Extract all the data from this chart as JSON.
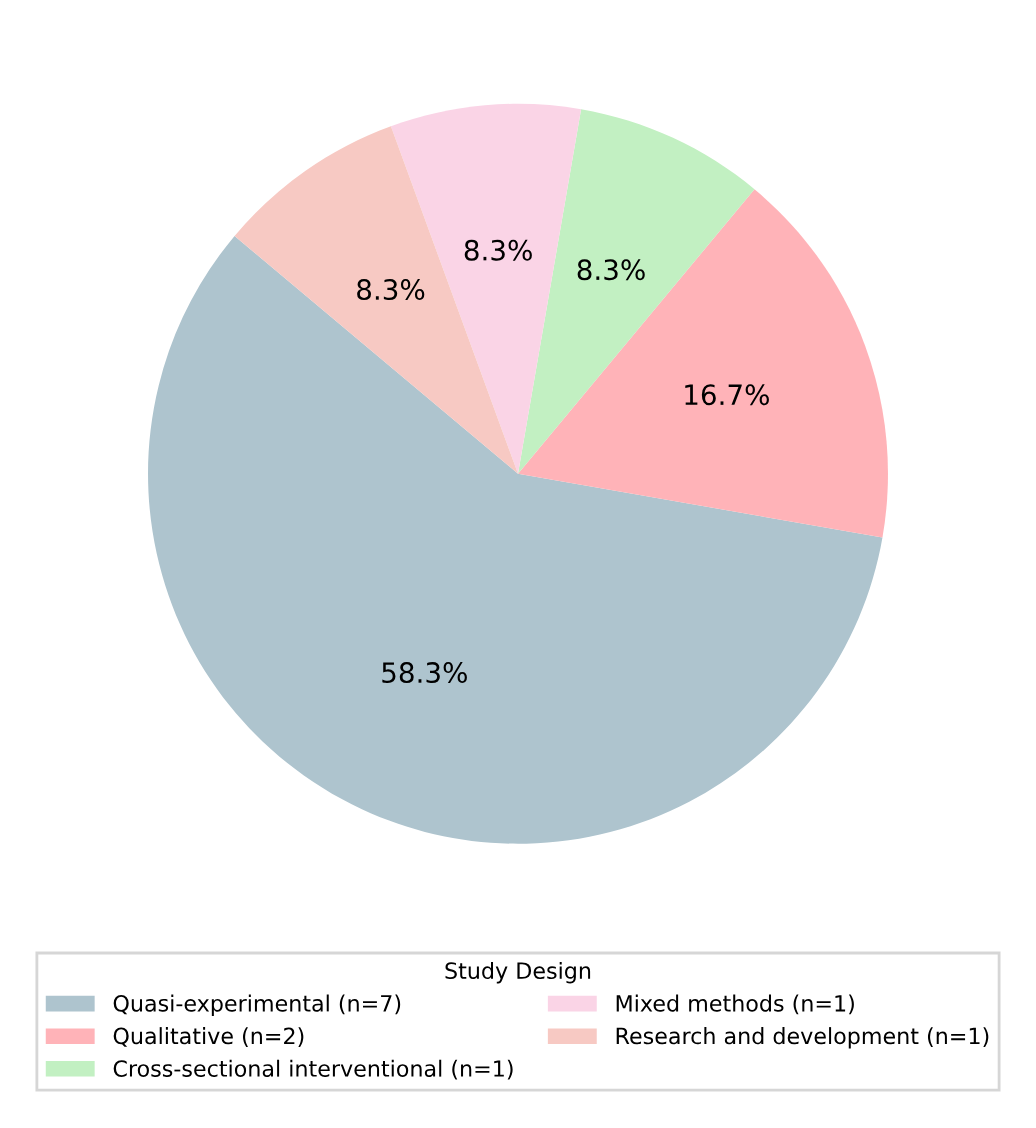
{
  "chart_data": {
    "type": "pie",
    "legend_title": "Study Design",
    "categories": [
      "Quasi-experimental (n=7)",
      "Qualitative (n=2)",
      "Cross-sectional interventional (n=1)",
      "Mixed methods (n=1)",
      "Research and development (n=1)"
    ],
    "values": [
      58.3,
      16.7,
      8.3,
      8.3,
      8.3
    ],
    "value_labels": [
      "58.3%",
      "16.7%",
      "8.3%",
      "8.3%",
      "8.3%"
    ],
    "colors": [
      "#aec4ce",
      "#ffb3b8",
      "#c2f0c2",
      "#fad4e6",
      "#f7c9c3"
    ],
    "legend": "bottom"
  }
}
